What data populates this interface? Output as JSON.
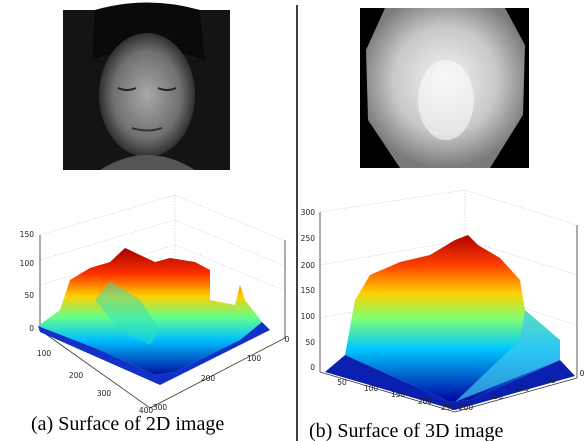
{
  "panels": [
    {
      "caption": "(a) Surface of 2D image",
      "z_ticks": [
        0,
        50,
        100,
        150
      ],
      "x_ticks": [
        100,
        200,
        300,
        400
      ],
      "y_ticks": [
        0,
        100,
        200,
        300
      ]
    },
    {
      "caption": "(b) Surface of 3D image",
      "z_ticks": [
        0,
        50,
        100,
        150,
        200,
        250,
        300
      ],
      "x_ticks": [
        50,
        100,
        150,
        200,
        250
      ],
      "y_ticks": [
        200,
        150,
        100,
        50,
        0
      ]
    }
  ]
}
